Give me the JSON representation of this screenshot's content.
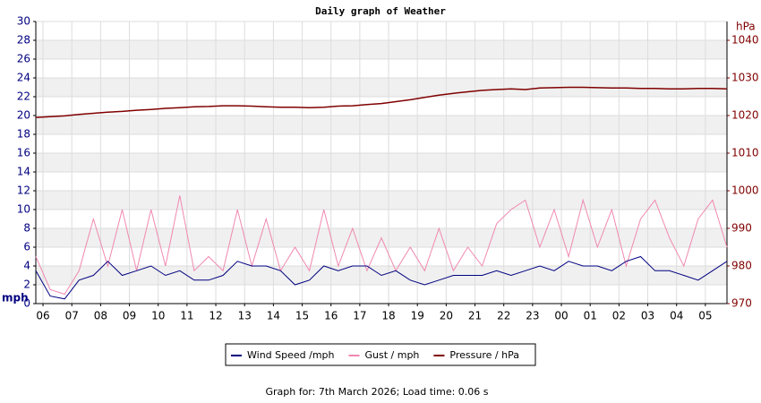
{
  "chart_data": {
    "type": "line",
    "title": "Daily graph of Weather",
    "y_label": "mph",
    "y2_label": "hPa",
    "footer": "Graph for: 7th March 2026; Load time: 0.06 s",
    "grid": true,
    "xlim": [
      5.75,
      29.75
    ],
    "xticks": [
      {
        "value": 6,
        "label": "06"
      },
      {
        "value": 7,
        "label": "07"
      },
      {
        "value": 8,
        "label": "08"
      },
      {
        "value": 9,
        "label": "09"
      },
      10,
      11,
      12,
      13,
      14,
      15,
      16,
      17,
      18,
      19,
      20,
      21,
      22,
      23,
      {
        "value": 24,
        "label": "00"
      },
      {
        "value": 25,
        "label": "01"
      },
      {
        "value": 26,
        "label": "02"
      },
      {
        "value": 27,
        "label": "03"
      },
      {
        "value": 28,
        "label": "04"
      },
      {
        "value": 29,
        "label": "05"
      }
    ],
    "ylim": [
      0,
      30
    ],
    "yticks": [
      0,
      2,
      4,
      6,
      8,
      10,
      12,
      14,
      16,
      18,
      20,
      22,
      24,
      26,
      28,
      30
    ],
    "y2lim": [
      970,
      1045
    ],
    "y2ticks": [
      970,
      980,
      990,
      1000,
      1010,
      1020,
      1030,
      1040
    ],
    "x": [
      5.75,
      6.25,
      6.75,
      7.25,
      7.75,
      8.25,
      8.75,
      9.25,
      9.75,
      10.25,
      10.75,
      11.25,
      11.75,
      12.25,
      12.75,
      13.25,
      13.75,
      14.25,
      14.75,
      15.25,
      15.75,
      16.25,
      16.75,
      17.25,
      17.75,
      18.25,
      18.75,
      19.25,
      19.75,
      20.25,
      20.75,
      21.25,
      21.75,
      22.25,
      22.75,
      23.25,
      23.75,
      24.25,
      24.75,
      25.25,
      25.75,
      26.25,
      26.75,
      27.25,
      27.75,
      28.25,
      28.75,
      29.25,
      29.75
    ],
    "series": [
      {
        "name": "Wind Speed /mph",
        "color": "#000080",
        "values": [
          3.5,
          0.8,
          0.5,
          2.5,
          3.0,
          4.5,
          3.0,
          3.5,
          4.0,
          3.0,
          3.5,
          2.5,
          2.5,
          3.0,
          4.5,
          4.0,
          4.0,
          3.5,
          2.0,
          2.5,
          4.0,
          3.5,
          4.0,
          4.0,
          3.0,
          3.5,
          2.5,
          2.0,
          2.5,
          3.0,
          3.0,
          3.0,
          3.5,
          3.0,
          3.5,
          4.0,
          3.5,
          4.5,
          4.0,
          4.0,
          3.5,
          4.5,
          5.0,
          3.5,
          3.5,
          3.0,
          2.5,
          3.5,
          4.5
        ]
      },
      {
        "name": "Gust / mph",
        "color": "#f088b0",
        "values": [
          5,
          1.5,
          1,
          3.5,
          9,
          4,
          10,
          3.5,
          10,
          4,
          11.5,
          3.5,
          5,
          3.5,
          10,
          4,
          9,
          3.5,
          6,
          3.5,
          10,
          4,
          8,
          3.5,
          7,
          3.5,
          6,
          3.5,
          8,
          3.5,
          6,
          4,
          8.5,
          10,
          11,
          6,
          10,
          5,
          11,
          6,
          10,
          4,
          9,
          11,
          7,
          4,
          9,
          11,
          6
        ]
      },
      {
        "name": "Pressure / hPa",
        "color": "#800000",
        "axis": "y2",
        "values": [
          1019.5,
          1019.7,
          1019.9,
          1020.3,
          1020.6,
          1020.9,
          1021.1,
          1021.4,
          1021.6,
          1021.9,
          1022.1,
          1022.3,
          1022.4,
          1022.6,
          1022.6,
          1022.5,
          1022.3,
          1022.2,
          1022.2,
          1022.1,
          1022.2,
          1022.5,
          1022.6,
          1022.9,
          1023.2,
          1023.7,
          1024.2,
          1024.8,
          1025.4,
          1025.9,
          1026.3,
          1026.7,
          1026.9,
          1027.1,
          1026.9,
          1027.3,
          1027.4,
          1027.5,
          1027.5,
          1027.4,
          1027.3,
          1027.3,
          1027.2,
          1027.2,
          1027.1,
          1027.1,
          1027.2,
          1027.2,
          1027.1
        ]
      }
    ]
  }
}
